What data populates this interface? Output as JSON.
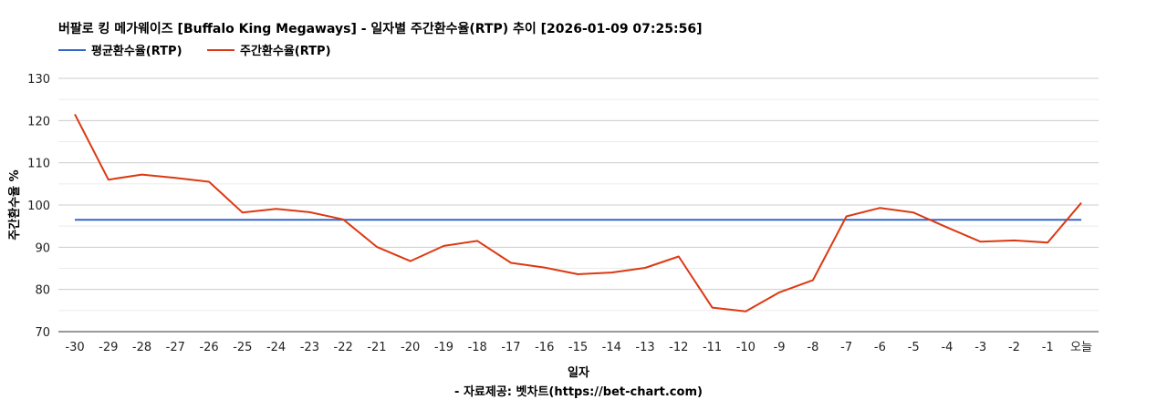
{
  "chart_data": {
    "type": "line",
    "title": "버팔로 킹 메가웨이즈 [Buffalo King Megaways] - 일자별 주간환수율(RTP) 추이 [2026-01-09 07:25:56]",
    "xlabel": "일자",
    "ylabel": "주간환수율 %",
    "source": "- 자료제공: 벳차트(https://bet-chart.com)",
    "ylim": [
      70,
      130
    ],
    "yticks": [
      "70",
      "80",
      "90",
      "100",
      "110",
      "120",
      "130"
    ],
    "grid": true,
    "legend_position": "top-left",
    "categories": [
      "-30",
      "-29",
      "-28",
      "-27",
      "-26",
      "-25",
      "-24",
      "-23",
      "-22",
      "-21",
      "-20",
      "-19",
      "-18",
      "-17",
      "-16",
      "-15",
      "-14",
      "-13",
      "-12",
      "-11",
      "-10",
      "-9",
      "-8",
      "-7",
      "-6",
      "-5",
      "-4",
      "-3",
      "-2",
      "-1",
      "오늘"
    ],
    "series": [
      {
        "name": "평균환수율(RTP)",
        "color": "#3366cc",
        "values": [
          96.5,
          96.5,
          96.5,
          96.5,
          96.5,
          96.5,
          96.5,
          96.5,
          96.5,
          96.5,
          96.5,
          96.5,
          96.5,
          96.5,
          96.5,
          96.5,
          96.5,
          96.5,
          96.5,
          96.5,
          96.5,
          96.5,
          96.5,
          96.5,
          96.5,
          96.5,
          96.5,
          96.5,
          96.5,
          96.5,
          96.5
        ]
      },
      {
        "name": "주간환수율(RTP)",
        "color": "#dc3912",
        "values": [
          121.5,
          106.0,
          107.2,
          106.4,
          105.5,
          98.2,
          99.1,
          98.3,
          96.6,
          90.1,
          86.7,
          90.3,
          91.5,
          86.3,
          85.2,
          83.6,
          84.0,
          85.1,
          87.8,
          75.7,
          74.8,
          79.3,
          82.2,
          97.3,
          99.3,
          98.2,
          94.7,
          91.3,
          91.6,
          91.1,
          100.5
        ]
      }
    ]
  }
}
